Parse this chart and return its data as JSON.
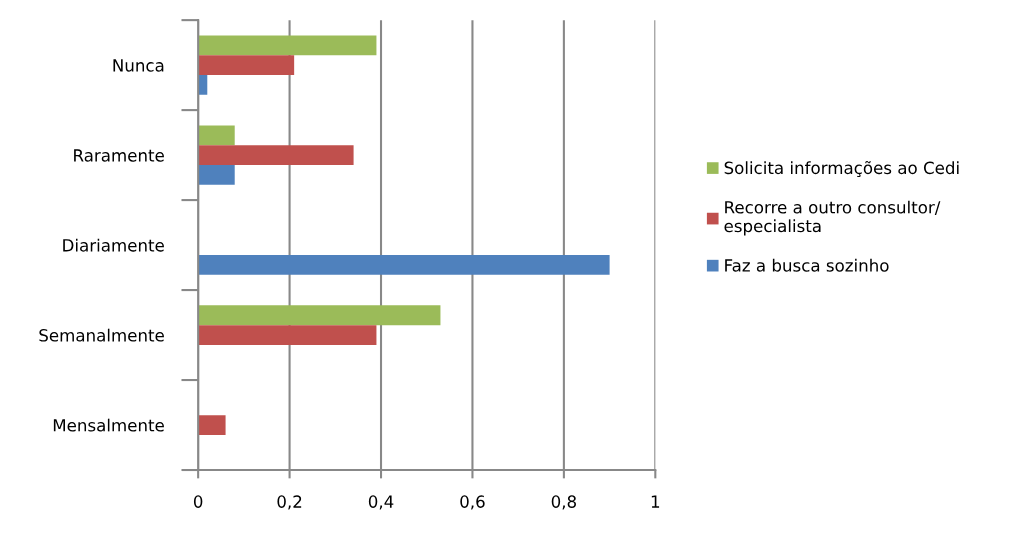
{
  "chart_data": {
    "type": "bar",
    "orientation": "horizontal",
    "categories": [
      "Nunca",
      "Raramente",
      "Diariamente",
      "Semanalmente",
      "Mensalmente"
    ],
    "series": [
      {
        "name": "Solicita informações ao Cedi",
        "color": "#9bbb59",
        "values": [
          0.39,
          0.08,
          0,
          0.53,
          0
        ]
      },
      {
        "name": "Recorre a outro consultor/\nespecialista",
        "color": "#c0504d",
        "values": [
          0.21,
          0.34,
          0,
          0.39,
          0.06
        ]
      },
      {
        "name": "Faz a busca sozinho",
        "color": "#4f81bd",
        "values": [
          0.02,
          0.08,
          0.9,
          0,
          0
        ]
      }
    ],
    "xlim": [
      0,
      1
    ],
    "xticks": [
      0,
      {
        "value": 0.2,
        "label": "0,2"
      },
      {
        "value": 0.4,
        "label": "0,4"
      },
      {
        "value": 0.6,
        "label": "0,6"
      },
      {
        "value": 0.8,
        "label": "0,8"
      },
      1
    ],
    "grid": "x",
    "legend": "right"
  }
}
